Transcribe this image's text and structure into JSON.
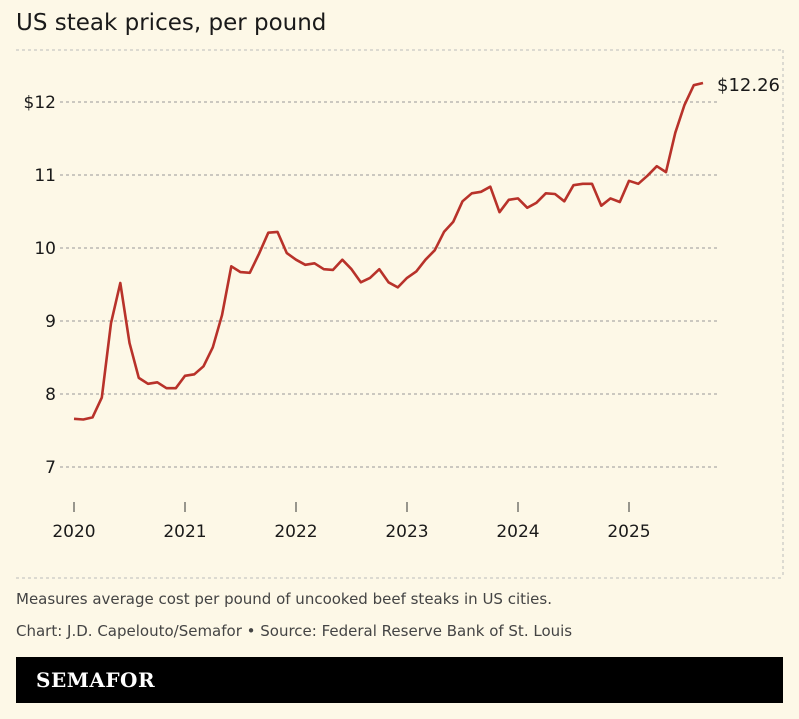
{
  "chart_data": {
    "type": "line",
    "title": "US steak prices, per pound",
    "xlabel": "",
    "ylabel": "",
    "x_ticks": [
      "2020",
      "2021",
      "2022",
      "2023",
      "2024",
      "2025"
    ],
    "y_ticks": [
      "$12",
      "11",
      "10",
      "9",
      "8",
      "7"
    ],
    "y_tick_values": [
      12,
      11,
      10,
      9,
      8,
      7
    ],
    "ylim": [
      6.8,
      12.4
    ],
    "xlim": [
      "2020-01",
      "2025-12"
    ],
    "grid": "horizontal dashed",
    "line_color": "#b8322a",
    "end_label": "$12.26",
    "start": "2020-01",
    "frequency": "monthly",
    "values": [
      7.66,
      7.65,
      7.68,
      7.95,
      8.97,
      9.52,
      8.7,
      8.22,
      8.14,
      8.16,
      8.08,
      8.08,
      8.25,
      8.27,
      8.38,
      8.64,
      9.08,
      9.75,
      9.67,
      9.66,
      9.92,
      10.21,
      10.22,
      9.93,
      9.84,
      9.77,
      9.79,
      9.71,
      9.7,
      9.84,
      9.71,
      9.53,
      9.59,
      9.71,
      9.53,
      9.46,
      9.59,
      9.68,
      9.84,
      9.97,
      10.22,
      10.36,
      10.64,
      10.75,
      10.77,
      10.84,
      10.49,
      10.66,
      10.68,
      10.55,
      10.62,
      10.75,
      10.74,
      10.64,
      10.86,
      10.88,
      10.88,
      10.58,
      10.68,
      10.63,
      10.92,
      10.88,
      10.99,
      11.12,
      11.04,
      11.58,
      11.96,
      12.23,
      12.26
    ]
  },
  "notes": {
    "description": "Measures average cost per pound of uncooked beef steaks in US cities.",
    "credit": "Chart: J.D. Capelouto/Semafor • Source: Federal Reserve Bank of St. Louis"
  },
  "brand": "SEMAFOR"
}
